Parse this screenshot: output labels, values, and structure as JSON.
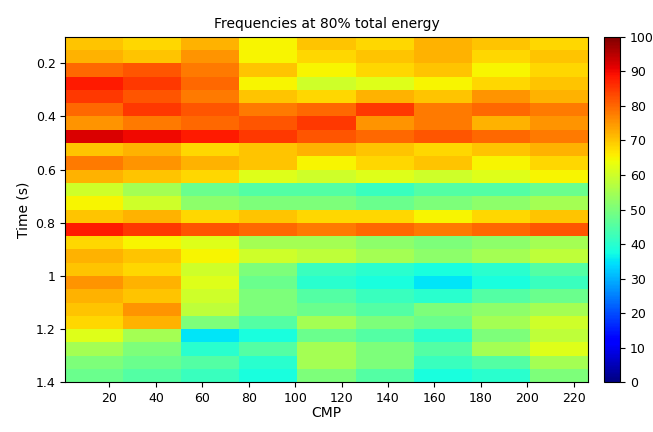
{
  "chart_data": {
    "type": "heatmap",
    "title": "Frequencies at 80% total energy",
    "x_label": "CMP",
    "y_label": "Time (s)",
    "xlim": [
      1,
      226
    ],
    "xticks": [
      20,
      40,
      60,
      80,
      100,
      120,
      140,
      160,
      180,
      200,
      220
    ],
    "ylim": [
      1.4,
      0.1
    ],
    "yticks": [
      0.2,
      0.4,
      0.6,
      0.8,
      1,
      1.2,
      1.4
    ],
    "x_edges": [
      1,
      26,
      51,
      76,
      101,
      126,
      151,
      176,
      201,
      226
    ],
    "y_edges": [
      0.1,
      0.15,
      0.2,
      0.25,
      0.3,
      0.35,
      0.4,
      0.45,
      0.5,
      0.55,
      0.6,
      0.65,
      0.7,
      0.75,
      0.8,
      0.85,
      0.9,
      0.95,
      1.0,
      1.05,
      1.1,
      1.15,
      1.2,
      1.25,
      1.3,
      1.35,
      1.4
    ],
    "cells": [
      [
        70,
        68,
        72,
        65,
        70,
        68,
        72,
        70,
        68
      ],
      [
        72,
        70,
        75,
        65,
        68,
        70,
        72,
        68,
        70
      ],
      [
        80,
        82,
        78,
        70,
        65,
        68,
        70,
        65,
        68
      ],
      [
        88,
        85,
        80,
        65,
        60,
        62,
        65,
        68,
        70
      ],
      [
        85,
        82,
        78,
        70,
        68,
        72,
        70,
        75,
        72
      ],
      [
        80,
        85,
        82,
        78,
        80,
        85,
        78,
        80,
        78
      ],
      [
        75,
        78,
        80,
        82,
        85,
        75,
        78,
        72,
        75
      ],
      [
        92,
        90,
        88,
        85,
        82,
        80,
        82,
        80,
        78
      ],
      [
        70,
        72,
        68,
        70,
        72,
        70,
        68,
        70,
        72
      ],
      [
        78,
        75,
        72,
        70,
        65,
        68,
        70,
        65,
        68
      ],
      [
        72,
        70,
        68,
        62,
        60,
        62,
        60,
        62,
        65
      ],
      [
        60,
        55,
        48,
        45,
        45,
        42,
        45,
        45,
        48
      ],
      [
        65,
        60,
        52,
        50,
        50,
        48,
        50,
        52,
        55
      ],
      [
        70,
        72,
        68,
        70,
        68,
        68,
        65,
        68,
        70
      ],
      [
        88,
        85,
        82,
        80,
        78,
        80,
        78,
        80,
        82
      ],
      [
        68,
        65,
        62,
        55,
        55,
        52,
        50,
        52,
        55
      ],
      [
        72,
        70,
        65,
        60,
        58,
        55,
        52,
        55,
        58
      ],
      [
        70,
        68,
        60,
        50,
        42,
        40,
        38,
        40,
        45
      ],
      [
        75,
        72,
        62,
        48,
        40,
        38,
        35,
        38,
        42
      ],
      [
        72,
        70,
        60,
        50,
        45,
        42,
        40,
        45,
        48
      ],
      [
        70,
        75,
        58,
        50,
        48,
        45,
        50,
        52,
        55
      ],
      [
        68,
        72,
        50,
        45,
        55,
        50,
        48,
        55,
        60
      ],
      [
        62,
        55,
        35,
        38,
        48,
        45,
        40,
        50,
        58
      ],
      [
        55,
        50,
        40,
        45,
        55,
        50,
        45,
        55,
        62
      ],
      [
        50,
        48,
        45,
        40,
        55,
        50,
        42,
        45,
        55
      ],
      [
        48,
        45,
        42,
        38,
        50,
        45,
        38,
        40,
        50
      ]
    ],
    "colorbar_range": [
      0,
      100
    ],
    "colorbar_ticks": [
      0,
      10,
      20,
      30,
      40,
      50,
      60,
      70,
      80,
      90,
      100
    ]
  }
}
